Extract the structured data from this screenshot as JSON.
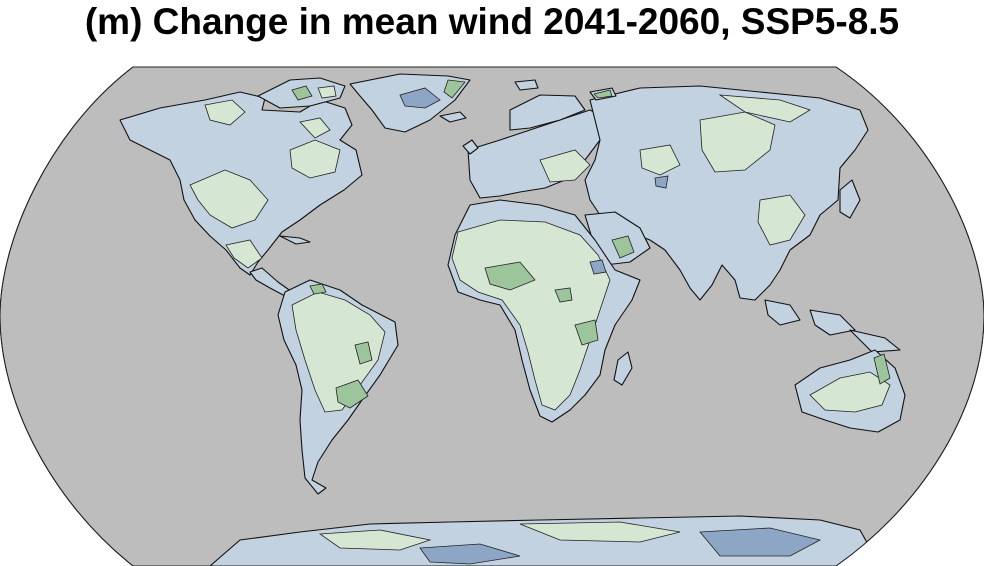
{
  "title": "(m) Change in mean wind 2041-2060, SSP5-8.5",
  "map": {
    "projection": "Robinson",
    "colors": {
      "ocean": "#bdbdbd",
      "land_slight_decrease": "#c3d2e0",
      "land_slight_increase": "#d5e6d2",
      "land_increase": "#9dc59b",
      "land_decrease": "#8ea6c6",
      "coastline": "#111111"
    },
    "regions": [
      "north-america",
      "greenland",
      "south-america",
      "africa",
      "europe",
      "asia",
      "australia",
      "antarctica"
    ]
  }
}
